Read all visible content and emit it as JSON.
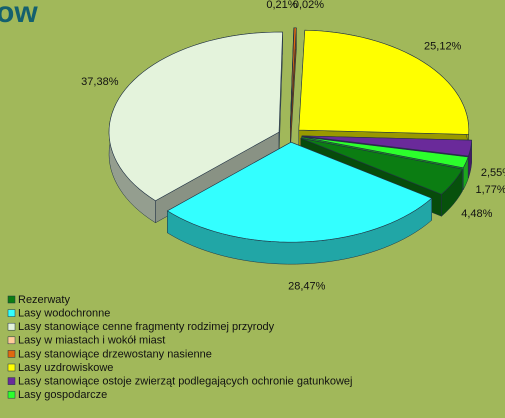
{
  "chart_data": {
    "type": "pie",
    "title": "ow",
    "categories": [
      "Rezerwaty",
      "Lasy wodochronne",
      "Lasy stanowiące cenne fragmenty rodzimej przyrody",
      "Lasy w miastach i wokół miast",
      "Lasy stanowiące drzewostany nasienne",
      "Lasy uzdrowiskowe",
      "Lasy stanowiące ostoje zwierząt podlegających ochronie gatunkowej",
      "Lasy gospodarcze"
    ],
    "values": [
      4.48,
      28.47,
      37.38,
      0.02,
      0.21,
      25.12,
      2.55,
      1.77
    ],
    "value_labels": [
      "4,48%",
      "28,47%",
      "37,38%",
      "0,02%",
      "0,21%",
      "25,12%",
      "2,55%",
      "1,77%"
    ],
    "colors": [
      "#0b7d12",
      "#33ffff",
      "#e4f3dc",
      "#ffcc99",
      "#e0680f",
      "#ffff00",
      "#6a2a9a",
      "#2cff2c"
    ],
    "legend": "bottom-left"
  }
}
